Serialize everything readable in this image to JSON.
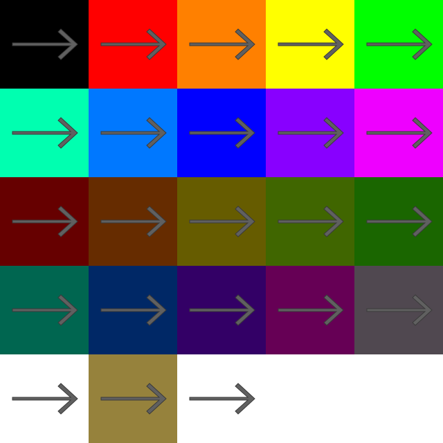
{
  "arrow": {
    "icon": "right-arrow-icon",
    "fill": "#606060",
    "stroke": "#3a3a3a"
  },
  "swatches": [
    {
      "id": "black",
      "color": "#000000"
    },
    {
      "id": "red",
      "color": "#ff0000"
    },
    {
      "id": "orange",
      "color": "#ff8000"
    },
    {
      "id": "yellow",
      "color": "#ffff00"
    },
    {
      "id": "green",
      "color": "#00ff00"
    },
    {
      "id": "aqua",
      "color": "#00ffb0"
    },
    {
      "id": "azure",
      "color": "#0078ff"
    },
    {
      "id": "blue",
      "color": "#0000ff"
    },
    {
      "id": "violet",
      "color": "#8800ff"
    },
    {
      "id": "magenta",
      "color": "#ee00ff"
    },
    {
      "id": "maroon",
      "color": "#660000"
    },
    {
      "id": "brown",
      "color": "#662c00"
    },
    {
      "id": "olive",
      "color": "#665c00"
    },
    {
      "id": "moss",
      "color": "#406600"
    },
    {
      "id": "forest",
      "color": "#1a6600"
    },
    {
      "id": "teal",
      "color": "#006650"
    },
    {
      "id": "navy",
      "color": "#002866"
    },
    {
      "id": "indigo",
      "color": "#330066"
    },
    {
      "id": "plum",
      "color": "#660055"
    },
    {
      "id": "charcoal",
      "color": "#504850"
    },
    {
      "id": "white",
      "color": "#ffffff"
    },
    {
      "id": "khaki",
      "color": "#96823c"
    },
    {
      "id": "white-2",
      "color": "#ffffff"
    }
  ]
}
